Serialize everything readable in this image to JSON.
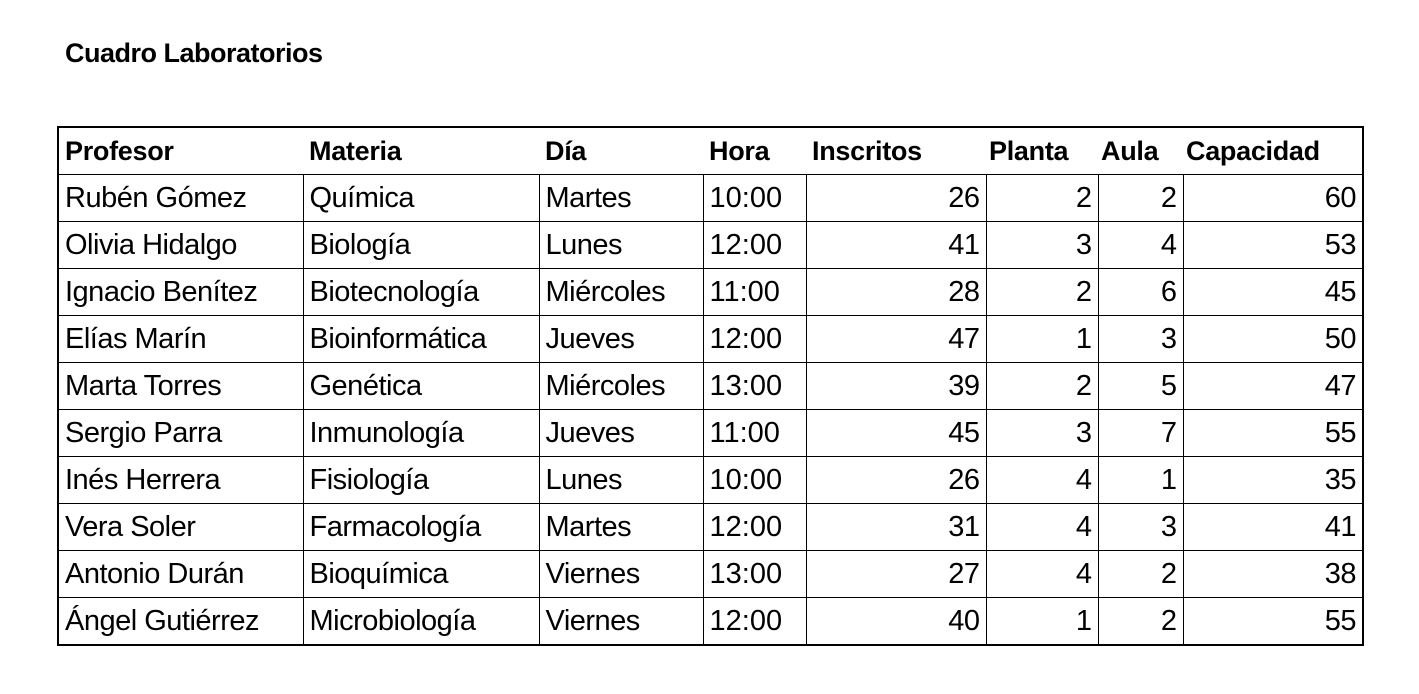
{
  "title": "Cuadro Laboratorios",
  "table": {
    "headers": [
      "Profesor",
      "Materia",
      "Día",
      "Hora",
      "Inscritos",
      "Planta",
      "Aula",
      "Capacidad"
    ],
    "rows": [
      [
        "Rubén Gómez",
        "Química",
        "Martes",
        "10:00",
        "26",
        "2",
        "2",
        "60"
      ],
      [
        "Olivia Hidalgo",
        "Biología",
        "Lunes",
        "12:00",
        "41",
        "3",
        "4",
        "53"
      ],
      [
        "Ignacio Benítez",
        "Biotecnología",
        "Miércoles",
        "11:00",
        "28",
        "2",
        "6",
        "45"
      ],
      [
        "Elías Marín",
        "Bioinformática",
        "Jueves",
        "12:00",
        "47",
        "1",
        "3",
        "50"
      ],
      [
        "Marta Torres",
        "Genética",
        "Miércoles",
        "13:00",
        "39",
        "2",
        "5",
        "47"
      ],
      [
        "Sergio Parra",
        "Inmunología",
        "Jueves",
        "11:00",
        "45",
        "3",
        "7",
        "55"
      ],
      [
        "Inés Herrera",
        "Fisiología",
        "Lunes",
        "10:00",
        "26",
        "4",
        "1",
        "35"
      ],
      [
        "Vera Soler",
        "Farmacología",
        "Martes",
        "12:00",
        "31",
        "4",
        "3",
        "41"
      ],
      [
        "Antonio Durán",
        "Bioquímica",
        "Viernes",
        "13:00",
        "27",
        "4",
        "2",
        "38"
      ],
      [
        "Ángel Gutiérrez",
        "Microbiología",
        "Viernes",
        "12:00",
        "40",
        "1",
        "2",
        "55"
      ]
    ]
  }
}
